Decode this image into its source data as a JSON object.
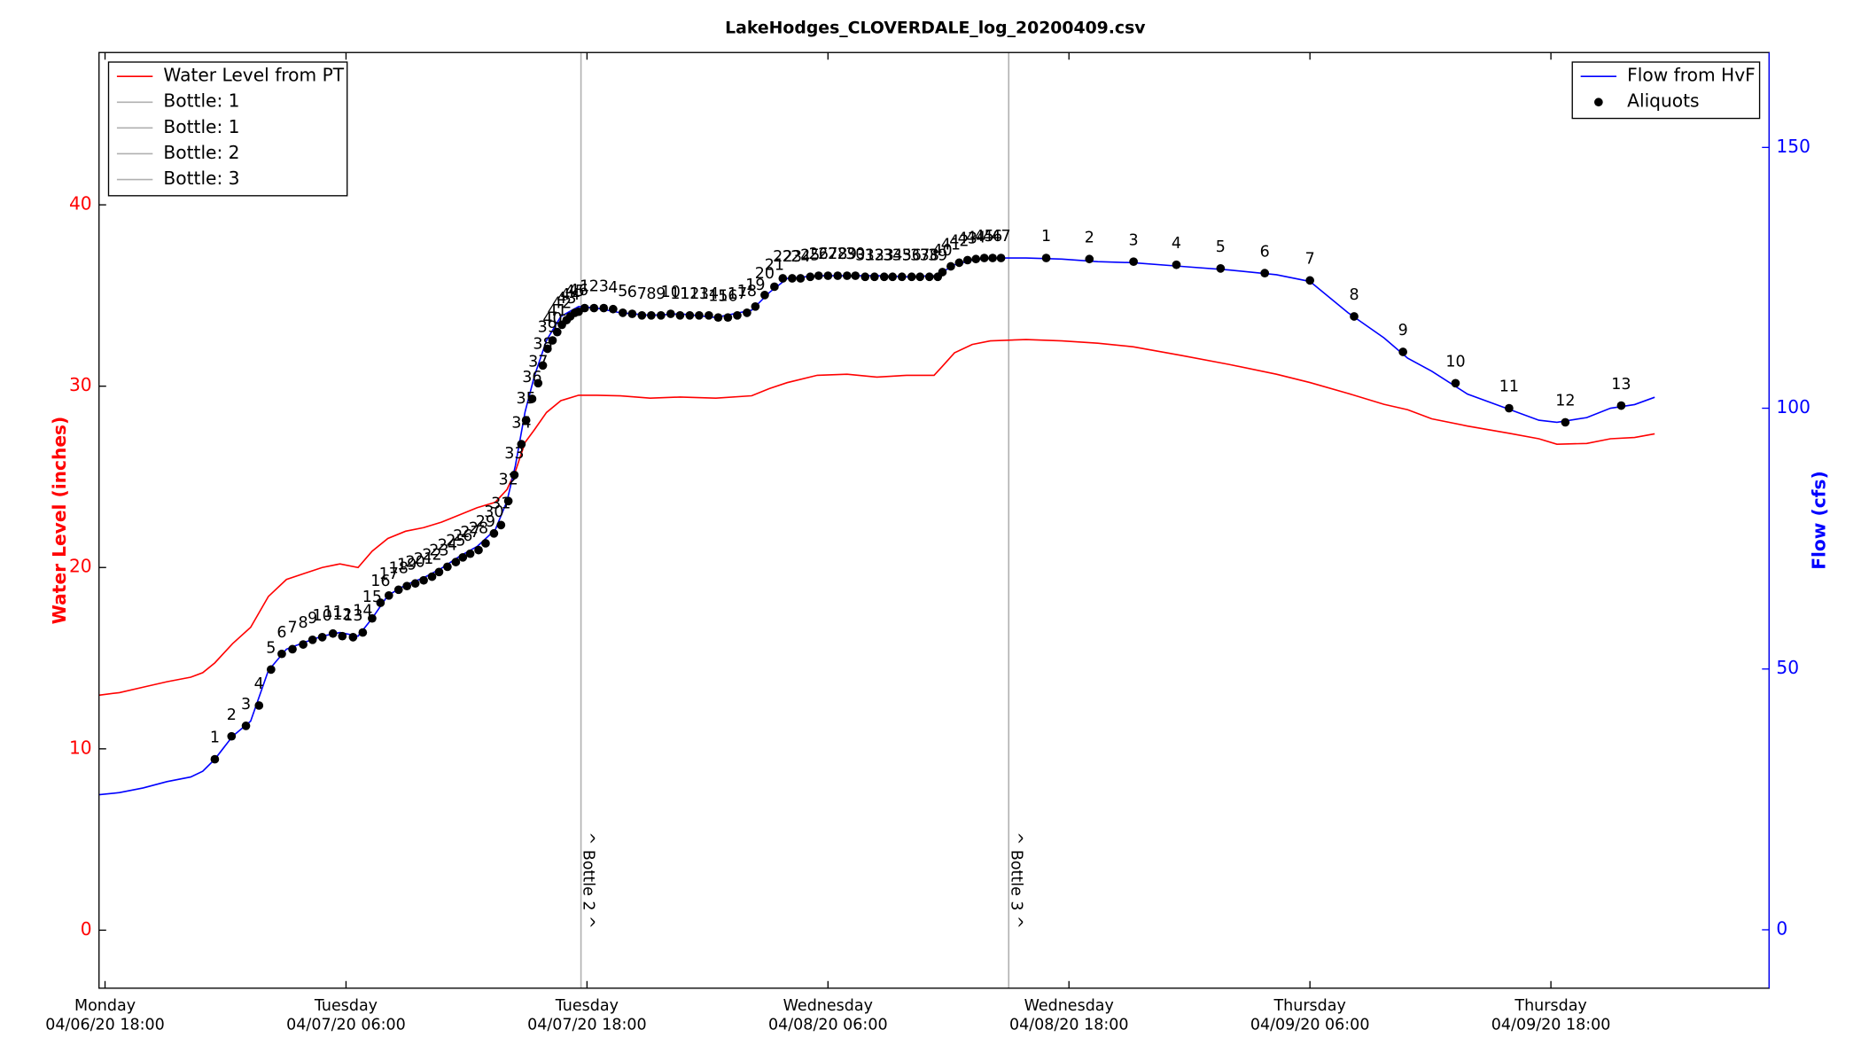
{
  "chart_data": {
    "type": "line",
    "title": "LakeHodges_CLOVERDALE_log_20200409.csv",
    "ylabel": "Water Level (inches)",
    "y2label": "Flow (cfs)",
    "ylabel_color": "#ff0000",
    "y2label_color": "#0000ff",
    "xlim": [
      "2020-04-06T17:42",
      "2020-04-10T04:52"
    ],
    "xticks": [
      {
        "value": "2020-04-06T18:00",
        "label": [
          "Monday",
          "04/06/20 18:00"
        ]
      },
      {
        "value": "2020-04-07T06:00",
        "label": [
          "Tuesday",
          "04/07/20 06:00"
        ]
      },
      {
        "value": "2020-04-07T18:00",
        "label": [
          "Tuesday",
          "04/07/20 18:00"
        ]
      },
      {
        "value": "2020-04-08T06:00",
        "label": [
          "Wednesday",
          "04/08/20 06:00"
        ]
      },
      {
        "value": "2020-04-08T18:00",
        "label": [
          "Wednesday",
          "04/08/20 18:00"
        ]
      },
      {
        "value": "2020-04-09T06:00",
        "label": [
          "Thursday",
          "04/09/20 06:00"
        ]
      },
      {
        "value": "2020-04-09T18:00",
        "label": [
          "Thursday",
          "04/09/20 18:00"
        ]
      }
    ],
    "ylim": [
      -3.2,
      48.4
    ],
    "yticks": [
      0,
      10,
      20,
      30,
      40
    ],
    "y2lim": [
      -11.2,
      168.2
    ],
    "y2ticks": [
      0,
      50,
      100,
      150
    ],
    "legend": "upper left",
    "legend2": "upper right",
    "x": [
      "2020-04-06T17:42",
      "2020-04-06T18:43",
      "2020-04-06T19:54",
      "2020-04-06T21:05",
      "2020-04-06T22:16",
      "2020-04-06T22:52",
      "2020-04-06T23:28",
      "2020-04-07T00:21",
      "2020-04-07T01:15",
      "2020-04-07T02:08",
      "2020-04-07T03:02",
      "2020-04-07T03:55",
      "2020-04-07T04:49",
      "2020-04-07T05:42",
      "2020-04-07T06:36",
      "2020-04-07T07:18",
      "2020-04-07T08:05",
      "2020-04-07T08:58",
      "2020-04-07T09:52",
      "2020-04-07T10:45",
      "2020-04-07T11:39",
      "2020-04-07T12:32",
      "2020-04-07T13:26",
      "2020-04-07T14:01",
      "2020-04-07T14:26",
      "2020-04-07T14:55",
      "2020-04-07T15:23",
      "2020-04-07T15:59",
      "2020-04-07T16:42",
      "2020-04-07T17:35",
      "2020-04-07T18:29",
      "2020-04-07T19:40",
      "2020-04-07T21:09",
      "2020-04-07T22:38",
      "2020-04-08T00:25",
      "2020-04-08T02:12",
      "2020-04-08T03:05",
      "2020-04-08T03:59",
      "2020-04-08T05:28",
      "2020-04-08T06:57",
      "2020-04-08T08:26",
      "2020-04-08T09:55",
      "2020-04-08T11:17",
      "2020-04-08T11:42",
      "2020-04-08T12:18",
      "2020-04-08T13:11",
      "2020-04-08T14:05",
      "2020-04-08T15:52",
      "2020-04-08T17:39",
      "2020-04-08T19:26",
      "2020-04-08T21:13",
      "2020-04-08T23:35",
      "2020-04-09T01:58",
      "2020-04-09T04:20",
      "2020-04-09T06:00",
      "2020-04-09T07:54",
      "2020-04-09T09:41",
      "2020-04-09T10:52",
      "2020-04-09T12:04",
      "2020-04-09T13:51",
      "2020-04-09T15:55",
      "2020-04-09T17:24",
      "2020-04-09T18:18",
      "2020-04-09T19:47",
      "2020-04-09T20:58",
      "2020-04-09T22:10",
      "2020-04-09T23:10"
    ],
    "series": [
      {
        "name": "Water Level from PT",
        "color": "#ff0000",
        "axis": "y",
        "values": [
          12.96,
          13.1,
          13.4,
          13.7,
          13.95,
          14.2,
          14.74,
          15.8,
          16.7,
          18.4,
          19.34,
          19.67,
          20.0,
          20.2,
          20.0,
          20.9,
          21.6,
          22.0,
          22.2,
          22.5,
          22.9,
          23.3,
          23.6,
          24.3,
          25.3,
          26.9,
          27.6,
          28.55,
          29.2,
          29.5,
          29.5,
          29.47,
          29.34,
          29.4,
          29.34,
          29.47,
          29.87,
          30.2,
          30.6,
          30.66,
          30.5,
          30.6,
          30.6,
          31.1,
          31.84,
          32.3,
          32.5,
          32.57,
          32.5,
          32.37,
          32.17,
          31.7,
          31.2,
          30.66,
          30.2,
          29.6,
          29.0,
          28.7,
          28.2,
          27.8,
          27.4,
          27.1,
          26.8,
          26.84,
          27.1,
          27.17,
          27.37
        ]
      },
      {
        "name": "Flow from HvF",
        "color": "#0000ff",
        "axis": "y2",
        "values": [
          25.9,
          26.3,
          27.2,
          28.4,
          29.3,
          30.4,
          32.7,
          37.1,
          40.0,
          49.7,
          53.8,
          55.1,
          56.3,
          57.0,
          56.3,
          59.7,
          64.1,
          66.1,
          67.5,
          69.3,
          71.6,
          73.5,
          76.7,
          82.2,
          89.0,
          99.3,
          106.2,
          113.0,
          117.6,
          119.5,
          119.2,
          118.3,
          117.8,
          118.1,
          117.4,
          118.8,
          122.2,
          124.9,
          125.4,
          125.4,
          125.4,
          125.2,
          125.4,
          126.1,
          127.5,
          128.4,
          128.8,
          128.8,
          128.6,
          128.1,
          127.9,
          127.2,
          126.5,
          125.6,
          124.3,
          118.3,
          113.5,
          109.6,
          107.1,
          102.7,
          99.8,
          97.7,
          97.3,
          98.2,
          100.0,
          100.7,
          102.1
        ]
      },
      {
        "name": "Aliquots",
        "color": "#000000",
        "axis": "y2",
        "type": "scatter",
        "x": [
          "2020-04-06T23:28",
          "2020-04-07T00:18",
          "2020-04-07T01:01",
          "2020-04-07T01:40",
          "2020-04-07T02:16",
          "2020-04-07T02:48",
          "2020-04-07T03:20",
          "2020-04-07T03:52",
          "2020-04-07T04:20",
          "2020-04-07T04:49",
          "2020-04-07T05:21",
          "2020-04-07T05:49",
          "2020-04-07T06:21",
          "2020-04-07T06:50",
          "2020-04-07T07:18",
          "2020-04-07T07:43",
          "2020-04-07T08:08",
          "2020-04-07T08:37",
          "2020-04-07T09:02",
          "2020-04-07T09:27",
          "2020-04-07T09:52",
          "2020-04-07T10:17",
          "2020-04-07T10:38",
          "2020-04-07T11:03",
          "2020-04-07T11:28",
          "2020-04-07T11:49",
          "2020-04-07T12:11",
          "2020-04-07T12:36",
          "2020-04-07T12:57",
          "2020-04-07T13:22",
          "2020-04-07T13:43",
          "2020-04-07T14:05",
          "2020-04-07T14:23",
          "2020-04-07T14:44",
          "2020-04-07T14:58",
          "2020-04-07T15:16",
          "2020-04-07T15:34",
          "2020-04-07T15:48",
          "2020-04-07T16:02",
          "2020-04-07T16:17",
          "2020-04-07T16:31",
          "2020-04-07T16:45",
          "2020-04-07T16:59",
          "2020-04-07T17:10",
          "2020-04-07T17:24",
          "2020-04-07T17:35",
          "2020-04-07T17:53",
          "2020-04-07T18:21",
          "2020-04-07T18:50",
          "2020-04-07T19:18",
          "2020-04-07T19:47",
          "2020-04-07T20:15",
          "2020-04-07T20:44",
          "2020-04-07T21:12",
          "2020-04-07T21:41",
          "2020-04-07T22:10",
          "2020-04-07T22:38",
          "2020-04-07T23:07",
          "2020-04-07T23:35",
          "2020-04-08T00:04",
          "2020-04-08T00:32",
          "2020-04-08T01:01",
          "2020-04-08T01:29",
          "2020-04-08T01:58",
          "2020-04-08T02:23",
          "2020-04-08T02:51",
          "2020-04-08T03:20",
          "2020-04-08T03:45",
          "2020-04-08T04:13",
          "2020-04-08T04:38",
          "2020-04-08T05:07",
          "2020-04-08T05:32",
          "2020-04-08T06:00",
          "2020-04-08T06:29",
          "2020-04-08T06:57",
          "2020-04-08T07:22",
          "2020-04-08T07:51",
          "2020-04-08T08:19",
          "2020-04-08T08:48",
          "2020-04-08T09:13",
          "2020-04-08T09:41",
          "2020-04-08T10:10",
          "2020-04-08T10:35",
          "2020-04-08T11:03",
          "2020-04-08T11:28",
          "2020-04-08T11:42",
          "2020-04-08T12:07",
          "2020-04-08T12:32",
          "2020-04-08T12:57",
          "2020-04-08T13:22",
          "2020-04-08T13:47",
          "2020-04-08T14:12",
          "2020-04-08T14:37",
          "2020-04-08T16:52",
          "2020-04-08T19:01",
          "2020-04-08T21:13",
          "2020-04-08T23:21",
          "2020-04-09T01:33",
          "2020-04-09T03:45",
          "2020-04-09T06:00",
          "2020-04-09T08:12",
          "2020-04-09T10:38",
          "2020-04-09T13:15",
          "2020-04-09T15:55",
          "2020-04-09T18:43",
          "2020-04-09T21:30"
        ],
        "values": [
          32.7,
          37.1,
          39.1,
          43.0,
          49.9,
          52.9,
          53.8,
          54.7,
          55.6,
          56.1,
          56.8,
          56.3,
          56.1,
          57.0,
          59.7,
          62.7,
          64.1,
          65.2,
          65.9,
          66.4,
          67.0,
          67.7,
          68.6,
          69.6,
          70.5,
          71.4,
          72.1,
          72.8,
          74.1,
          76.0,
          77.6,
          82.2,
          87.2,
          93.1,
          97.7,
          101.8,
          104.8,
          108.2,
          111.4,
          113.0,
          114.6,
          116.0,
          116.9,
          117.6,
          118.3,
          118.5,
          119.2,
          119.2,
          119.2,
          119.0,
          118.3,
          118.1,
          117.8,
          117.8,
          117.8,
          118.1,
          117.8,
          117.8,
          117.8,
          117.8,
          117.4,
          117.4,
          117.8,
          118.3,
          119.5,
          121.7,
          123.3,
          124.9,
          124.9,
          124.9,
          125.2,
          125.4,
          125.4,
          125.4,
          125.4,
          125.4,
          125.2,
          125.2,
          125.2,
          125.2,
          125.2,
          125.2,
          125.2,
          125.2,
          125.2,
          126.1,
          127.2,
          127.9,
          128.4,
          128.6,
          128.8,
          128.8,
          128.8,
          128.8,
          128.6,
          128.1,
          127.5,
          126.8,
          125.9,
          124.5,
          117.6,
          110.8,
          104.8,
          100.0,
          97.3,
          100.5
        ],
        "labels": [
          1,
          2,
          3,
          4,
          5,
          6,
          7,
          8,
          9,
          10,
          11,
          12,
          13,
          14,
          15,
          16,
          17,
          18,
          19,
          20,
          21,
          22,
          23,
          24,
          25,
          26,
          27,
          28,
          29,
          30,
          31,
          32,
          33,
          34,
          35,
          36,
          37,
          38,
          39,
          40,
          41,
          42,
          43,
          44,
          45,
          46,
          1,
          2,
          3,
          4,
          5,
          6,
          7,
          8,
          9,
          10,
          11,
          12,
          13,
          14,
          15,
          16,
          17,
          18,
          19,
          20,
          21,
          22,
          23,
          24,
          25,
          26,
          27,
          28,
          29,
          30,
          31,
          32,
          33,
          34,
          35,
          36,
          37,
          38,
          39,
          40,
          41,
          42,
          43,
          44,
          45,
          46,
          47,
          1,
          2,
          3,
          4,
          5,
          6,
          7,
          8,
          9,
          10,
          11,
          12,
          13
        ]
      }
    ],
    "vlines": [
      {
        "name": "Bottle: 1",
        "color": "#b0b0b0"
      },
      {
        "name": "Bottle: 1",
        "color": "#b0b0b0"
      },
      {
        "name": "Bottle: 2",
        "color": "#b0b0b0",
        "x": "2020-04-07T17:42",
        "label": "^ Bottle 2 ^"
      },
      {
        "name": "Bottle: 3",
        "color": "#b0b0b0",
        "x": "2020-04-08T15:00",
        "label": "^ Bottle 3 ^"
      }
    ]
  }
}
